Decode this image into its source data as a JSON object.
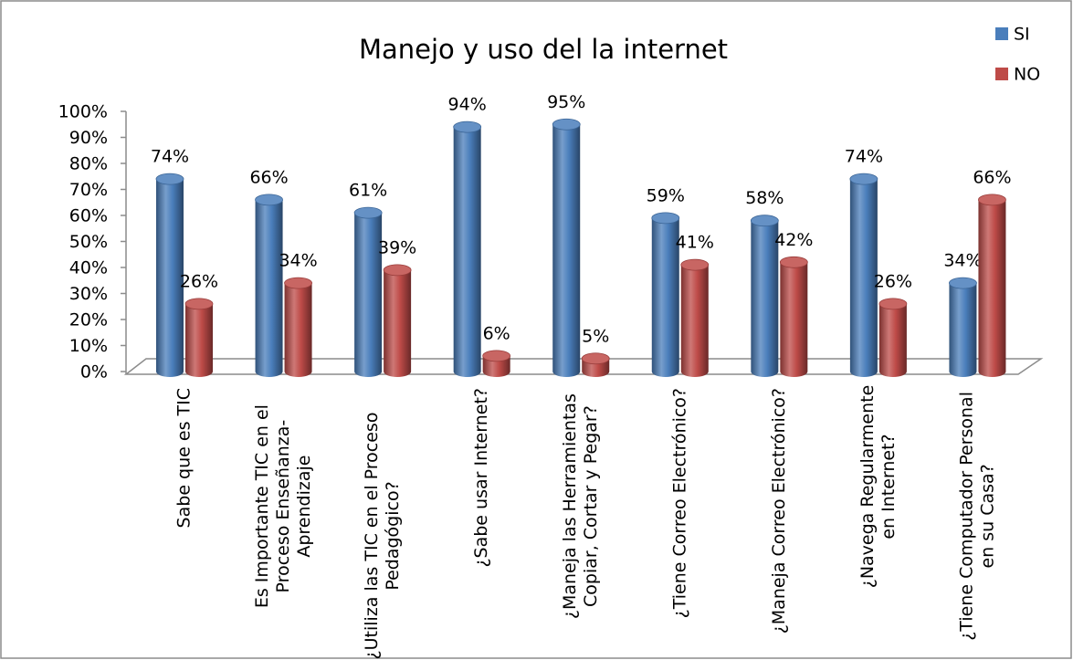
{
  "chart_data": {
    "type": "bar",
    "title": "Manejo y uso del la internet",
    "categories": [
      [
        "Sabe que es TIC"
      ],
      [
        "Es Importante  TIC en el",
        "Proceso Enseñanza-",
        "Aprendizaje"
      ],
      [
        "¿Utiliza las TIC en el Proceso",
        "Pedagógico?"
      ],
      [
        "¿Sabe usar Internet?"
      ],
      [
        "¿Maneja las Herramientas",
        "Copiar, Cortar y Pegar?"
      ],
      [
        "¿Tiene Correo Electrónico?"
      ],
      [
        "¿Maneja Correo Electrónico?"
      ],
      [
        "¿Navega Regularmente",
        "en Internet?"
      ],
      [
        "¿Tiene Computador Personal",
        "en su Casa?"
      ]
    ],
    "series": [
      {
        "name": "SI",
        "color": "#4a7ebb",
        "values": [
          74,
          66,
          61,
          94,
          95,
          59,
          58,
          74,
          34
        ],
        "value_labels": [
          "74%",
          "66%",
          "61%",
          "94%",
          "95%",
          "59%",
          "58%",
          "74%",
          "34%"
        ]
      },
      {
        "name": "NO",
        "color": "#be4b48",
        "values": [
          26,
          34,
          39,
          6,
          5,
          41,
          42,
          26,
          66
        ],
        "value_labels": [
          "26%",
          "34%",
          "39%",
          "6%",
          "5%",
          "41%",
          "42%",
          "26%",
          "66%"
        ]
      }
    ],
    "ylim": [
      0,
      100
    ],
    "yticks": [
      {
        "value": 0,
        "label": "0%"
      },
      {
        "value": 10,
        "label": "10%"
      },
      {
        "value": 20,
        "label": "20%"
      },
      {
        "value": 30,
        "label": "30%"
      },
      {
        "value": 40,
        "label": "40%"
      },
      {
        "value": 50,
        "label": "50%"
      },
      {
        "value": 60,
        "label": "60%"
      },
      {
        "value": 70,
        "label": "70%"
      },
      {
        "value": 80,
        "label": "80%"
      },
      {
        "value": 90,
        "label": "90%"
      },
      {
        "value": 100,
        "label": "100%"
      }
    ],
    "legend": "top-right"
  }
}
